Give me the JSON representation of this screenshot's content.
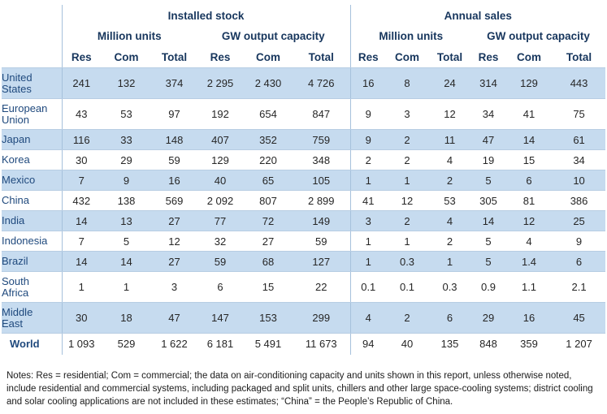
{
  "headers": {
    "group_installed": "Installed stock",
    "group_sales": "Annual sales",
    "sub_units": "Million units",
    "sub_capacity": "GW output capacity",
    "col_res": "Res",
    "col_com": "Com",
    "col_total": "Total"
  },
  "rows": [
    {
      "country": [
        "United",
        "States"
      ],
      "vals": [
        "241",
        "132",
        "374",
        "2 295",
        "2 430",
        "4 726",
        "16",
        "8",
        "24",
        "314",
        "129",
        "443"
      ],
      "shade": "blue",
      "tall": true
    },
    {
      "country": [
        "European",
        "Union"
      ],
      "vals": [
        "43",
        "53",
        "97",
        "192",
        "654",
        "847",
        "9",
        "3",
        "12",
        "34",
        "41",
        "75"
      ],
      "shade": "white",
      "tall": true
    },
    {
      "country": [
        "Japan"
      ],
      "vals": [
        "116",
        "33",
        "148",
        "407",
        "352",
        "759",
        "9",
        "2",
        "11",
        "47",
        "14",
        "61"
      ],
      "shade": "blue",
      "tall": false
    },
    {
      "country": [
        "Korea"
      ],
      "vals": [
        "30",
        "29",
        "59",
        "129",
        "220",
        "348",
        "2",
        "2",
        "4",
        "19",
        "15",
        "34"
      ],
      "shade": "white",
      "tall": false
    },
    {
      "country": [
        "Mexico"
      ],
      "vals": [
        "7",
        "9",
        "16",
        "40",
        "65",
        "105",
        "1",
        "1",
        "2",
        "5",
        "6",
        "10"
      ],
      "shade": "blue",
      "tall": false
    },
    {
      "country": [
        "China"
      ],
      "vals": [
        "432",
        "138",
        "569",
        "2 092",
        "807",
        "2 899",
        "41",
        "12",
        "53",
        "305",
        "81",
        "386"
      ],
      "shade": "white",
      "tall": false
    },
    {
      "country": [
        "India"
      ],
      "vals": [
        "14",
        "13",
        "27",
        "77",
        "72",
        "149",
        "3",
        "2",
        "4",
        "14",
        "12",
        "25"
      ],
      "shade": "blue",
      "tall": false
    },
    {
      "country": [
        "Indonesia"
      ],
      "vals": [
        "7",
        "5",
        "12",
        "32",
        "27",
        "59",
        "1",
        "1",
        "2",
        "5",
        "4",
        "9"
      ],
      "shade": "white",
      "tall": false
    },
    {
      "country": [
        "Brazil"
      ],
      "vals": [
        "14",
        "14",
        "27",
        "59",
        "68",
        "127",
        "1",
        "0.3",
        "1",
        "5",
        "1.4",
        "6"
      ],
      "shade": "blue",
      "tall": false
    },
    {
      "country": [
        "South",
        "Africa"
      ],
      "vals": [
        "1",
        "1",
        "3",
        "6",
        "15",
        "22",
        "0.1",
        "0.1",
        "0.3",
        "0.9",
        "1.1",
        "2.1"
      ],
      "shade": "white",
      "tall": true
    },
    {
      "country": [
        "Middle",
        "East"
      ],
      "vals": [
        "30",
        "18",
        "47",
        "147",
        "153",
        "299",
        "4",
        "2",
        "6",
        "29",
        "16",
        "45"
      ],
      "shade": "blue",
      "tall": true
    }
  ],
  "world": {
    "country": "World",
    "vals": [
      "1 093",
      "529",
      "1 622",
      "6 181",
      "5 491",
      "11 673",
      "94",
      "40",
      "135",
      "848",
      "359",
      "1 207"
    ]
  },
  "notes": "Notes: Res = residential; Com = commercial; the data on air-conditioning capacity and units shown in this report, unless otherwise noted, include residential and commercial systems, including packaged and split units, chillers and other large space-cooling systems; district cooling and solar cooling applications are not included in these estimates; “China” = the People’s Republic of China."
}
